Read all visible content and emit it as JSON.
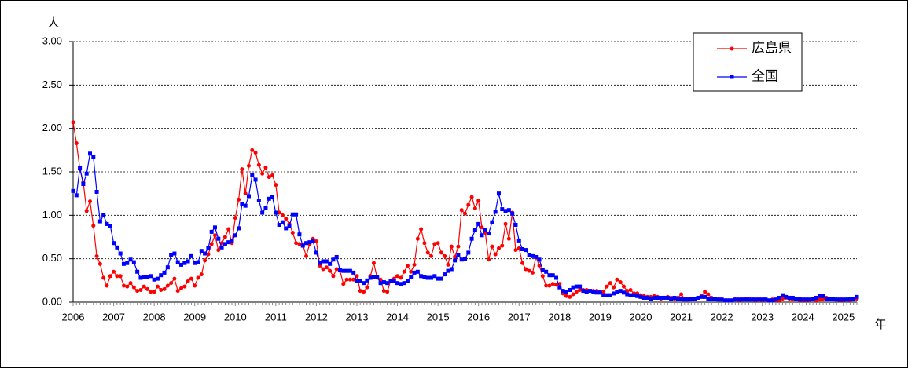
{
  "chart_data": {
    "type": "line",
    "y_axis_label": "人",
    "x_axis_label": "年",
    "categories": [
      "2006",
      null,
      null,
      null,
      null,
      null,
      null,
      null,
      null,
      null,
      null,
      null,
      "2007",
      null,
      null,
      null,
      null,
      null,
      null,
      null,
      null,
      null,
      null,
      null,
      "2008",
      null,
      null,
      null,
      null,
      null,
      null,
      null,
      null,
      null,
      null,
      null,
      "2009",
      null,
      null,
      null,
      null,
      null,
      null,
      null,
      null,
      null,
      null,
      null,
      "2010",
      null,
      null,
      null,
      null,
      null,
      null,
      null,
      null,
      null,
      null,
      null,
      "2011",
      null,
      null,
      null,
      null,
      null,
      null,
      null,
      null,
      null,
      null,
      null,
      "2012",
      null,
      null,
      null,
      null,
      null,
      null,
      null,
      null,
      null,
      null,
      null,
      "2013",
      null,
      null,
      null,
      null,
      null,
      null,
      null,
      null,
      null,
      null,
      null,
      "2014",
      null,
      null,
      null,
      null,
      null,
      null,
      null,
      null,
      null,
      null,
      null,
      "2015",
      null,
      null,
      null,
      null,
      null,
      null,
      null,
      null,
      null,
      null,
      null,
      "2016",
      null,
      null,
      null,
      null,
      null,
      null,
      null,
      null,
      null,
      null,
      null,
      "2017",
      null,
      null,
      null,
      null,
      null,
      null,
      null,
      null,
      null,
      null,
      null,
      "2018",
      null,
      null,
      null,
      null,
      null,
      null,
      null,
      null,
      null,
      null,
      null,
      "2019",
      null,
      null,
      null,
      null,
      null,
      null,
      null,
      null,
      null,
      null,
      null,
      "2020",
      null,
      null,
      null,
      null,
      null,
      null,
      null,
      null,
      null,
      null,
      null,
      "2021",
      null,
      null,
      null,
      null,
      null,
      null,
      null,
      null,
      null,
      null,
      null,
      "2022",
      null,
      null,
      null,
      null,
      null,
      null,
      null,
      null,
      null,
      null,
      null,
      "2023",
      null,
      null,
      null,
      null,
      null,
      null,
      null,
      null,
      null,
      null,
      null,
      "2024",
      null,
      null,
      null,
      null,
      null,
      null,
      null,
      null,
      null,
      null,
      null,
      "2025",
      null,
      null,
      null,
      null
    ],
    "series": [
      {
        "name": "広島県",
        "color": "#ff0000",
        "marker": "circle",
        "values": [
          2.07,
          1.83,
          1.53,
          1.38,
          1.05,
          1.16,
          0.88,
          0.53,
          0.44,
          0.28,
          0.19,
          0.3,
          0.35,
          0.3,
          0.3,
          0.19,
          0.18,
          0.22,
          0.17,
          0.13,
          0.14,
          0.18,
          0.15,
          0.12,
          0.12,
          0.18,
          0.14,
          0.15,
          0.19,
          0.22,
          0.27,
          0.13,
          0.16,
          0.18,
          0.24,
          0.27,
          0.19,
          0.28,
          0.32,
          0.48,
          0.55,
          0.67,
          0.77,
          0.6,
          0.68,
          0.75,
          0.84,
          0.68,
          0.97,
          1.18,
          1.53,
          1.25,
          1.57,
          1.75,
          1.72,
          1.58,
          1.48,
          1.55,
          1.44,
          1.46,
          1.35,
          1.03,
          1.0,
          0.96,
          0.9,
          0.8,
          0.68,
          0.67,
          0.66,
          0.53,
          0.67,
          0.73,
          0.7,
          0.42,
          0.38,
          0.4,
          0.36,
          0.3,
          0.38,
          0.36,
          0.21,
          0.26,
          0.26,
          0.26,
          0.3,
          0.13,
          0.12,
          0.17,
          0.3,
          0.45,
          0.28,
          0.26,
          0.13,
          0.12,
          0.25,
          0.27,
          0.3,
          0.28,
          0.35,
          0.42,
          0.35,
          0.43,
          0.73,
          0.84,
          0.68,
          0.57,
          0.53,
          0.67,
          0.68,
          0.57,
          0.53,
          0.43,
          0.64,
          0.52,
          0.64,
          1.06,
          1.02,
          1.12,
          1.21,
          1.08,
          1.17,
          0.86,
          0.8,
          0.49,
          0.64,
          0.55,
          0.62,
          0.65,
          0.9,
          0.73,
          1.03,
          0.6,
          0.62,
          0.45,
          0.38,
          0.36,
          0.34,
          0.52,
          0.42,
          0.3,
          0.19,
          0.19,
          0.21,
          0.2,
          0.21,
          0.1,
          0.07,
          0.06,
          0.09,
          0.12,
          0.14,
          0.14,
          0.14,
          0.13,
          0.13,
          0.13,
          0.12,
          0.12,
          0.18,
          0.22,
          0.17,
          0.26,
          0.23,
          0.18,
          0.13,
          0.14,
          0.1,
          0.1,
          0.08,
          0.07,
          0.06,
          0.06,
          0.07,
          0.06,
          0.04,
          0.05,
          0.06,
          0.05,
          0.04,
          0.05,
          0.09,
          0.04,
          0.04,
          0.03,
          0.04,
          0.05,
          0.07,
          0.12,
          0.09,
          0.05,
          0.04,
          0.03,
          0.03,
          0.02,
          0.02,
          0.02,
          0.03,
          0.02,
          0.03,
          0.04,
          0.03,
          0.03,
          0.02,
          0.03,
          0.02,
          0.03,
          0.02,
          0.03,
          0.02,
          0.02,
          0.04,
          0.05,
          0.04,
          0.03,
          0.03,
          0.02,
          0.02,
          0.02,
          0.02,
          0.03,
          0.02,
          0.03,
          0.04,
          0.05,
          0.04,
          0.03,
          0.03,
          0.02,
          0.02,
          0.03,
          0.02,
          0.03,
          0.04
        ]
      },
      {
        "name": "全国",
        "color": "#0000ff",
        "marker": "square",
        "values": [
          1.28,
          1.23,
          1.55,
          1.36,
          1.48,
          1.71,
          1.67,
          1.27,
          0.93,
          1.0,
          0.9,
          0.88,
          0.68,
          0.63,
          0.56,
          0.44,
          0.45,
          0.49,
          0.46,
          0.35,
          0.28,
          0.29,
          0.29,
          0.3,
          0.26,
          0.27,
          0.31,
          0.34,
          0.4,
          0.54,
          0.56,
          0.46,
          0.43,
          0.45,
          0.47,
          0.53,
          0.45,
          0.46,
          0.59,
          0.56,
          0.62,
          0.81,
          0.86,
          0.73,
          0.63,
          0.67,
          0.69,
          0.71,
          0.77,
          0.85,
          1.13,
          1.11,
          1.22,
          1.46,
          1.41,
          1.17,
          1.03,
          1.08,
          1.19,
          1.21,
          1.03,
          0.89,
          0.92,
          0.85,
          0.88,
          1.01,
          1.01,
          0.78,
          0.65,
          0.68,
          0.69,
          0.7,
          0.57,
          0.45,
          0.47,
          0.47,
          0.44,
          0.49,
          0.52,
          0.37,
          0.36,
          0.36,
          0.36,
          0.34,
          0.24,
          0.24,
          0.22,
          0.25,
          0.28,
          0.29,
          0.29,
          0.22,
          0.23,
          0.22,
          0.24,
          0.24,
          0.22,
          0.21,
          0.22,
          0.24,
          0.29,
          0.34,
          0.35,
          0.3,
          0.29,
          0.28,
          0.28,
          0.3,
          0.27,
          0.27,
          0.32,
          0.36,
          0.38,
          0.48,
          0.54,
          0.49,
          0.5,
          0.57,
          0.73,
          0.83,
          0.9,
          0.77,
          0.83,
          0.79,
          0.92,
          1.04,
          1.25,
          1.07,
          1.05,
          1.06,
          1.02,
          0.89,
          0.71,
          0.61,
          0.6,
          0.54,
          0.53,
          0.52,
          0.49,
          0.37,
          0.35,
          0.31,
          0.31,
          0.28,
          0.17,
          0.13,
          0.12,
          0.14,
          0.17,
          0.18,
          0.18,
          0.13,
          0.12,
          0.13,
          0.12,
          0.11,
          0.11,
          0.08,
          0.08,
          0.08,
          0.1,
          0.12,
          0.13,
          0.11,
          0.09,
          0.08,
          0.08,
          0.07,
          0.06,
          0.05,
          0.05,
          0.04,
          0.05,
          0.05,
          0.05,
          0.05,
          0.05,
          0.04,
          0.05,
          0.04,
          0.04,
          0.03,
          0.03,
          0.04,
          0.04,
          0.05,
          0.06,
          0.06,
          0.04,
          0.04,
          0.04,
          0.03,
          0.03,
          0.02,
          0.02,
          0.02,
          0.03,
          0.03,
          0.03,
          0.03,
          0.03,
          0.03,
          0.03,
          0.03,
          0.03,
          0.03,
          0.02,
          0.02,
          0.03,
          0.05,
          0.08,
          0.06,
          0.05,
          0.05,
          0.04,
          0.04,
          0.03,
          0.03,
          0.03,
          0.04,
          0.05,
          0.07,
          0.07,
          0.04,
          0.04,
          0.04,
          0.03,
          0.03,
          0.03,
          0.03,
          0.04,
          0.04,
          0.06
        ]
      }
    ],
    "ylim": [
      0,
      3
    ],
    "yticks": [
      {
        "value": 0,
        "label": "0.00"
      },
      {
        "value": 0.5,
        "label": "0.50"
      },
      {
        "value": 1,
        "label": "1.00"
      },
      {
        "value": 1.5,
        "label": "1.50"
      },
      {
        "value": 2,
        "label": "2.00"
      },
      {
        "value": 2.5,
        "label": "2.50"
      },
      {
        "value": 3,
        "label": "3.00"
      }
    ],
    "grid": true,
    "legend": "top-right"
  }
}
